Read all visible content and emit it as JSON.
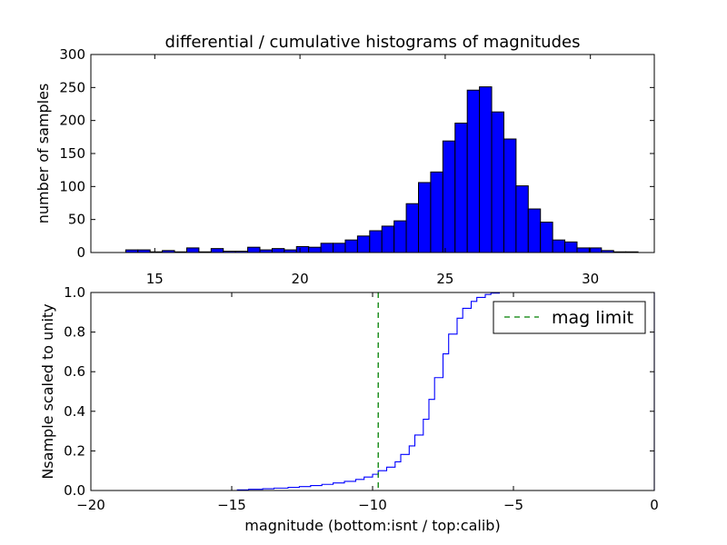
{
  "chart_data": [
    {
      "type": "bar",
      "title": "differential / cumulative histograms of magnitudes",
      "xlabel": "",
      "ylabel": "number of samples",
      "xlim": [
        12.8,
        32.2
      ],
      "ylim": [
        0,
        300
      ],
      "xticks": [
        15,
        20,
        25,
        30
      ],
      "yticks": [
        0,
        50,
        100,
        150,
        200,
        250,
        300
      ],
      "bar_color": "#0000ff",
      "bin_width": 0.42,
      "bin_start": 14.0,
      "values": [
        4,
        4,
        1,
        3,
        1,
        7,
        1,
        6,
        2,
        2,
        8,
        4,
        6,
        4,
        9,
        8,
        14,
        14,
        19,
        25,
        33,
        40,
        48,
        74,
        106,
        122,
        169,
        196,
        246,
        251,
        213,
        172,
        101,
        66,
        46,
        19,
        16,
        7,
        7,
        3,
        1,
        1
      ]
    },
    {
      "type": "line",
      "step": true,
      "xlabel": "magnitude (bottom:isnt / top:calib)",
      "ylabel": "Nsample scaled to unity",
      "xlim": [
        -20,
        0
      ],
      "ylim": [
        0.0,
        1.0
      ],
      "xticks": [
        -20,
        -15,
        -10,
        -5,
        0
      ],
      "yticks": [
        0.0,
        0.2,
        0.4,
        0.6,
        0.8,
        1.0
      ],
      "line_color": "#0000ff",
      "x": [
        -19.2,
        -14.8,
        -14.4,
        -13.9,
        -13.5,
        -13.0,
        -12.6,
        -12.2,
        -11.8,
        -11.4,
        -11.0,
        -10.6,
        -10.3,
        -10.0,
        -9.8,
        -9.5,
        -9.2,
        -9.0,
        -8.7,
        -8.5,
        -8.2,
        -8.0,
        -7.8,
        -7.5,
        -7.3,
        -7.0,
        -6.8,
        -6.5,
        -6.3,
        -6.0,
        -5.8,
        -5.5,
        0.0
      ],
      "y": [
        0.0,
        0.003,
        0.006,
        0.009,
        0.012,
        0.016,
        0.02,
        0.025,
        0.031,
        0.038,
        0.046,
        0.056,
        0.068,
        0.082,
        0.1,
        0.118,
        0.145,
        0.182,
        0.225,
        0.28,
        0.36,
        0.46,
        0.57,
        0.69,
        0.79,
        0.87,
        0.92,
        0.955,
        0.975,
        0.99,
        0.997,
        1.0,
        1.0
      ],
      "vline": {
        "x": -9.8,
        "color": "#007f00",
        "label": "mag limit"
      },
      "legend": "top-right"
    }
  ]
}
